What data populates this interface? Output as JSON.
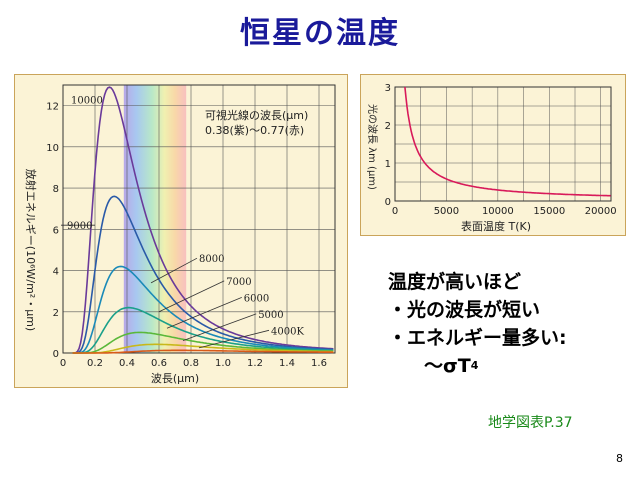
{
  "title": "恒星の温度",
  "bullets": {
    "line1": "温度が高いほど",
    "line2": "・光の波長が短い",
    "line3": "・エネルギー量多い:",
    "formula": "～σT",
    "formula_sup": "4"
  },
  "source": "地学図表P.37",
  "page_number": "8",
  "chart_data": [
    {
      "type": "line",
      "xlabel": "波長(μm)",
      "ylabel": "放射エネルギー(10⁶W/m²・μm)",
      "xlim": [
        0,
        1.7
      ],
      "ylim": [
        0,
        13
      ],
      "x_ticks": [
        "0",
        "0.2",
        "0.4",
        "0.6",
        "0.8",
        "1.0",
        "1.2",
        "1.4",
        "1.6"
      ],
      "y_ticks": [
        "0",
        "2",
        "4",
        "6",
        "8",
        "10",
        "12"
      ],
      "annotation_line1": "可視光線の波長(μm)",
      "annotation_line2": "0.38(紫)～0.77(赤)",
      "visible_band": [
        0.38,
        0.77
      ],
      "series": [
        {
          "name": "10000",
          "color": "#6a3a9a",
          "peak_x": 0.29,
          "peak_y": 12.9
        },
        {
          "name": "9000",
          "color": "#2a5aa8",
          "peak_x": 0.32,
          "peak_y": 7.6
        },
        {
          "name": "8000",
          "color": "#1a8ab8",
          "peak_x": 0.36,
          "peak_y": 4.2
        },
        {
          "name": "7000",
          "color": "#1aa08a",
          "peak_x": 0.41,
          "peak_y": 2.2
        },
        {
          "name": "6000",
          "color": "#5ab83a",
          "peak_x": 0.48,
          "peak_y": 1.0
        },
        {
          "name": "5000",
          "color": "#c8b81a",
          "peak_x": 0.58,
          "peak_y": 0.42
        },
        {
          "name": "4000K",
          "color": "#d85a1a",
          "peak_x": 0.72,
          "peak_y": 0.13
        }
      ]
    },
    {
      "type": "line",
      "xlabel": "表面温度 T(K)",
      "ylabel": "光の波長 λm (μm)",
      "xlim": [
        0,
        21000
      ],
      "ylim": [
        0,
        3
      ],
      "x_ticks": [
        "0",
        "5000",
        "10000",
        "15000",
        "20000"
      ],
      "y_ticks": [
        "0",
        "1",
        "2",
        "3"
      ],
      "series": [
        {
          "color": "#d81a5a",
          "x": [
            966,
            1200,
            1500,
            2000,
            2500,
            3000,
            4000,
            5000,
            6000,
            8000,
            10000,
            12000,
            15000,
            18000,
            21000
          ],
          "y": [
            3.0,
            2.415,
            1.932,
            1.449,
            1.159,
            0.966,
            0.725,
            0.58,
            0.483,
            0.362,
            0.29,
            0.242,
            0.193,
            0.161,
            0.138
          ]
        }
      ]
    }
  ]
}
